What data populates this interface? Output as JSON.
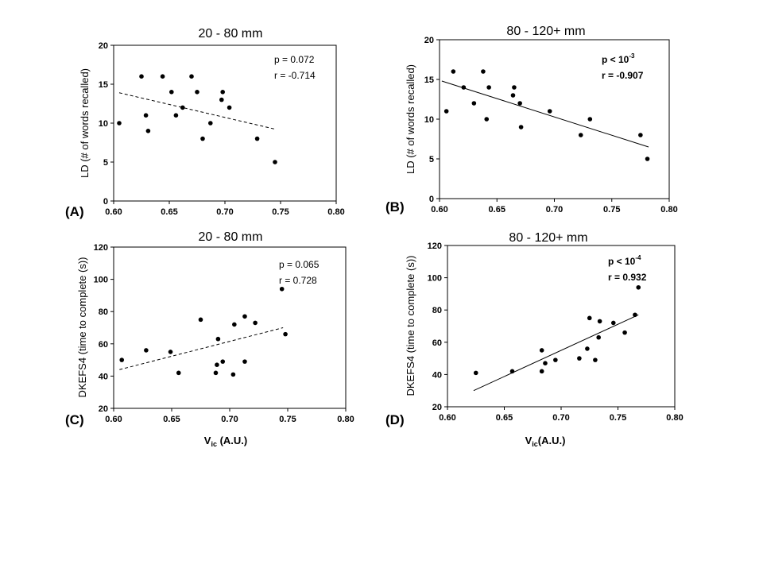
{
  "chart_data": [
    {
      "id": "A",
      "type": "scatter",
      "panel_label": "(A)",
      "title": "20 - 80 mm",
      "xlabel_main": "",
      "xlabel_sub": "",
      "ylabel": "LD (# of words recalled)",
      "xlim": [
        0.6,
        0.8
      ],
      "ylim": [
        0,
        20
      ],
      "xticks": [
        0.6,
        0.65,
        0.7,
        0.75,
        0.8
      ],
      "yticks": [
        0,
        5,
        10,
        15,
        20
      ],
      "xtick_labels": [
        "0.60",
        "0.65",
        "0.70",
        "0.75",
        "0.80"
      ],
      "ytick_labels": [
        "0",
        "5",
        "10",
        "15",
        "20"
      ],
      "fit": {
        "style": "dashed",
        "x": [
          0.605,
          0.746
        ],
        "y": [
          13.9,
          9.2
        ]
      },
      "stat_lines": [
        {
          "prefix": "p = 0.072",
          "sup": "",
          "bold": false
        },
        {
          "prefix": "r  = -0.714",
          "sup": "",
          "bold": false
        }
      ],
      "points": [
        [
          0.605,
          10
        ],
        [
          0.625,
          16
        ],
        [
          0.629,
          11
        ],
        [
          0.631,
          9
        ],
        [
          0.644,
          16
        ],
        [
          0.652,
          14
        ],
        [
          0.656,
          11
        ],
        [
          0.662,
          12
        ],
        [
          0.67,
          16
        ],
        [
          0.675,
          14
        ],
        [
          0.68,
          8
        ],
        [
          0.687,
          10
        ],
        [
          0.697,
          13
        ],
        [
          0.698,
          14
        ],
        [
          0.704,
          12
        ],
        [
          0.729,
          8
        ],
        [
          0.745,
          5
        ]
      ]
    },
    {
      "id": "B",
      "type": "scatter",
      "panel_label": "(B)",
      "title": "80 - 120+ mm",
      "xlabel_main": "",
      "xlabel_sub": "",
      "ylabel": "LD (# of words recalled)",
      "xlim": [
        0.6,
        0.8
      ],
      "ylim": [
        0,
        20
      ],
      "xticks": [
        0.6,
        0.65,
        0.7,
        0.75,
        0.8
      ],
      "yticks": [
        0,
        5,
        10,
        15,
        20
      ],
      "xtick_labels": [
        "0.60",
        "0.65",
        "0.70",
        "0.75",
        "0.80"
      ],
      "ytick_labels": [
        "0",
        "5",
        "10",
        "15",
        "20"
      ],
      "fit": {
        "style": "solid",
        "x": [
          0.602,
          0.782
        ],
        "y": [
          14.8,
          6.5
        ]
      },
      "stat_lines": [
        {
          "prefix": "p  < 10",
          "sup": "-3",
          "bold": true
        },
        {
          "prefix": "r  = -0.907",
          "sup": "",
          "bold": true
        }
      ],
      "points": [
        [
          0.606,
          11
        ],
        [
          0.612,
          16
        ],
        [
          0.621,
          14
        ],
        [
          0.63,
          12
        ],
        [
          0.638,
          16
        ],
        [
          0.641,
          10
        ],
        [
          0.643,
          14
        ],
        [
          0.664,
          13
        ],
        [
          0.665,
          14
        ],
        [
          0.67,
          12
        ],
        [
          0.671,
          9
        ],
        [
          0.696,
          11
        ],
        [
          0.723,
          8
        ],
        [
          0.731,
          10
        ],
        [
          0.775,
          8
        ],
        [
          0.781,
          5
        ]
      ]
    },
    {
      "id": "C",
      "type": "scatter",
      "panel_label": "(C)",
      "title": "20 - 80 mm",
      "xlabel_main": "V",
      "xlabel_sub": "ic",
      "xlabel_suffix": " (A.U.)",
      "ylabel": "DKEFS4 (time to complete (s))",
      "xlim": [
        0.6,
        0.8
      ],
      "ylim": [
        20,
        120
      ],
      "xticks": [
        0.6,
        0.65,
        0.7,
        0.75,
        0.8
      ],
      "yticks": [
        20,
        40,
        60,
        80,
        100,
        120
      ],
      "xtick_labels": [
        "0.60",
        "0.65",
        "0.70",
        "0.75",
        "0.80"
      ],
      "ytick_labels": [
        "20",
        "40",
        "60",
        "80",
        "100",
        "120"
      ],
      "fit": {
        "style": "dashed",
        "x": [
          0.605,
          0.746
        ],
        "y": [
          44,
          70
        ]
      },
      "stat_lines": [
        {
          "prefix": "p  = 0.065",
          "sup": "",
          "bold": false
        },
        {
          "prefix": "r  = 0.728",
          "sup": "",
          "bold": false
        }
      ],
      "points": [
        [
          0.607,
          50
        ],
        [
          0.628,
          56
        ],
        [
          0.649,
          55
        ],
        [
          0.656,
          42
        ],
        [
          0.675,
          75
        ],
        [
          0.688,
          42
        ],
        [
          0.689,
          47
        ],
        [
          0.69,
          63
        ],
        [
          0.694,
          49
        ],
        [
          0.703,
          41
        ],
        [
          0.704,
          72
        ],
        [
          0.713,
          77
        ],
        [
          0.713,
          49
        ],
        [
          0.722,
          73
        ],
        [
          0.745,
          94
        ],
        [
          0.748,
          66
        ]
      ]
    },
    {
      "id": "D",
      "type": "scatter",
      "panel_label": "(D)",
      "title": "80 - 120+ mm",
      "xlabel_main": "V",
      "xlabel_sub": "ic",
      "xlabel_suffix": "(A.U.)",
      "ylabel": "DKEFS4 (time to complete (s))",
      "xlim": [
        0.6,
        0.8
      ],
      "ylim": [
        20,
        120
      ],
      "xticks": [
        0.6,
        0.65,
        0.7,
        0.75,
        0.8
      ],
      "yticks": [
        20,
        40,
        60,
        80,
        100,
        120
      ],
      "xtick_labels": [
        "0.60",
        "0.65",
        "0.70",
        "0.75",
        "0.80"
      ],
      "ytick_labels": [
        "20",
        "40",
        "60",
        "80",
        "100",
        "120"
      ],
      "fit": {
        "style": "solid",
        "x": [
          0.623,
          0.768
        ],
        "y": [
          30,
          77
        ]
      },
      "stat_lines": [
        {
          "prefix": "p  < 10",
          "sup": "-4",
          "bold": true
        },
        {
          "prefix": "r  = 0.932",
          "sup": "",
          "bold": true
        }
      ],
      "points": [
        [
          0.625,
          41
        ],
        [
          0.657,
          42
        ],
        [
          0.683,
          42
        ],
        [
          0.683,
          55
        ],
        [
          0.686,
          47
        ],
        [
          0.695,
          49
        ],
        [
          0.716,
          50
        ],
        [
          0.723,
          56
        ],
        [
          0.725,
          75
        ],
        [
          0.73,
          49
        ],
        [
          0.733,
          63
        ],
        [
          0.734,
          73
        ],
        [
          0.746,
          72
        ],
        [
          0.756,
          66
        ],
        [
          0.765,
          77
        ],
        [
          0.768,
          94
        ]
      ]
    }
  ]
}
